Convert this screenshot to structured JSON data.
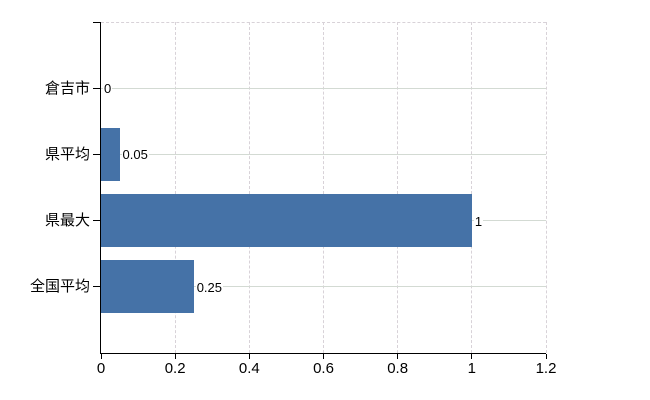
{
  "chart_data": {
    "type": "bar",
    "orientation": "horizontal",
    "title": "",
    "xlabel": "",
    "ylabel": "",
    "categories": [
      "倉吉市",
      "県平均",
      "県最大",
      "全国平均"
    ],
    "values": [
      0,
      0.05,
      1,
      0.25
    ],
    "data_labels": [
      "0",
      "0.05",
      "1",
      "0.25"
    ],
    "xlim": [
      0,
      1.2
    ],
    "x_tick_values": [
      0,
      0.2,
      0.4,
      0.6,
      0.8,
      1,
      1.2
    ],
    "x_tick_labels": [
      "0",
      "0.2",
      "0.4",
      "0.6",
      "0.8",
      "1",
      "1.2"
    ],
    "grid": true,
    "legend": "none",
    "colors": {
      "bar": "#4572A7",
      "axis": "#000000",
      "gridline": "#d6d6d6",
      "text": "#000000",
      "background": "#ffffff"
    }
  }
}
